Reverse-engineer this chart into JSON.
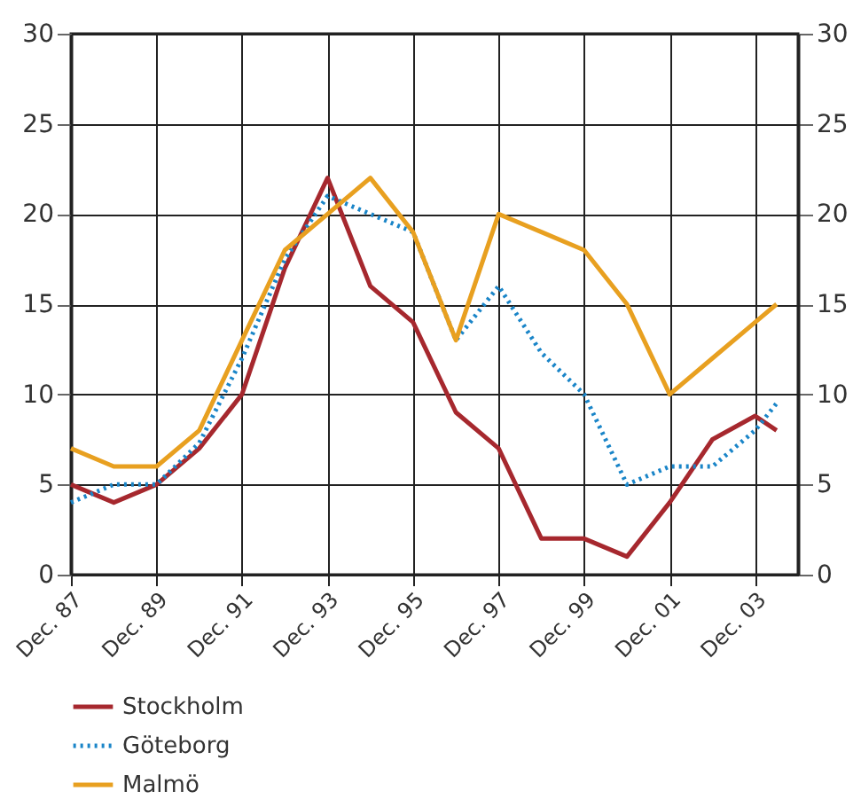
{
  "chart_data": {
    "type": "line",
    "x": [
      "1987-12",
      "1988-12",
      "1989-12",
      "1990-12",
      "1991-12",
      "1992-12",
      "1993-12",
      "1994-12",
      "1995-12",
      "1996-12",
      "1997-12",
      "1998-12",
      "1999-12",
      "2000-12",
      "2001-12",
      "2002-12",
      "2003-12",
      "2004-06"
    ],
    "series": [
      {
        "name": "Stockholm",
        "color": "#a6282e",
        "line_style": "solid",
        "values": [
          5,
          4,
          5,
          7,
          10,
          17,
          22,
          16,
          14,
          9,
          7,
          2,
          2,
          1,
          4,
          7.5,
          8.8,
          8
        ]
      },
      {
        "name": "Göteborg",
        "color": "#1a85c8",
        "line_style": "dotted",
        "values": [
          4,
          5,
          5,
          7.3,
          12,
          17.5,
          21,
          20,
          19,
          13,
          16,
          12.3,
          10,
          5,
          6,
          6,
          8,
          9.5
        ]
      },
      {
        "name": "Malmö",
        "color": "#e8a020",
        "line_style": "solid",
        "values": [
          7,
          6,
          6,
          8,
          13,
          18,
          20,
          22,
          19,
          13,
          20,
          19,
          18,
          15,
          10,
          12,
          14,
          15
        ]
      }
    ],
    "xlim": [
      "1987-12",
      "2004-12"
    ],
    "xticks": [
      {
        "value": "1987-12",
        "label": "Dec. 87"
      },
      {
        "value": "1989-12",
        "label": "Dec. 89"
      },
      {
        "value": "1991-12",
        "label": "Dec. 91"
      },
      {
        "value": "1993-12",
        "label": "Dec. 93"
      },
      {
        "value": "1995-12",
        "label": "Dec. 95"
      },
      {
        "value": "1997-12",
        "label": "Dec. 97"
      },
      {
        "value": "1999-12",
        "label": "Dec. 99"
      },
      {
        "value": "2001-12",
        "label": "Dec. 01"
      },
      {
        "value": "2003-12",
        "label": "Dec. 03"
      }
    ],
    "ylim": [
      0,
      30
    ],
    "yticks": [
      0,
      5,
      10,
      15,
      20,
      25,
      30
    ],
    "y2lim": [
      0,
      30
    ],
    "y2ticks": [
      0,
      5,
      10,
      15,
      20,
      25,
      30
    ],
    "grid": true,
    "legend": "bottom left",
    "marker": "none"
  }
}
